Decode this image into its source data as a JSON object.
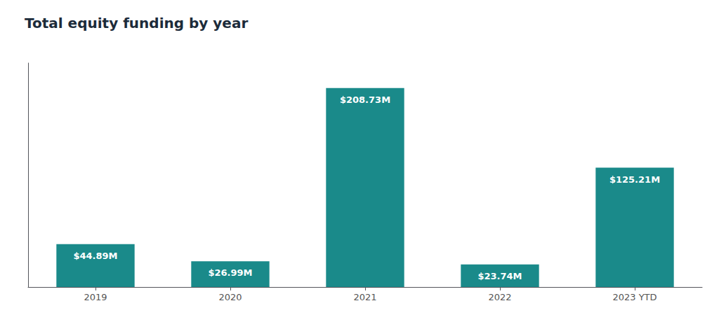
{
  "chart_data": {
    "type": "bar",
    "title": "Total equity funding by year",
    "categories": [
      "2019",
      "2020",
      "2021",
      "2022",
      "2023 YTD"
    ],
    "values": [
      44.89,
      26.99,
      208.73,
      23.74,
      125.21
    ],
    "value_labels": [
      "$44.89M",
      "$26.99M",
      "$208.73M",
      "$23.74M",
      "$125.21M"
    ],
    "data_labels": true,
    "color": "#1a8a8a",
    "ylim": [
      0,
      235
    ],
    "grid": false,
    "tick_labels": "x"
  }
}
